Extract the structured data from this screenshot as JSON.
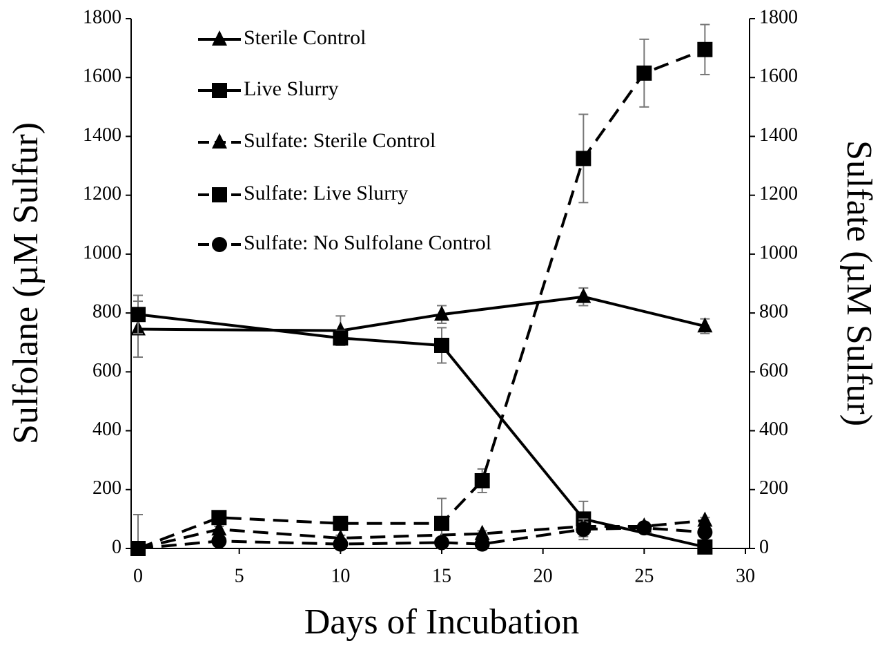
{
  "chart_data": {
    "type": "line",
    "xlabel": "Days of Incubation",
    "ylabel": "Sulfolane (µM Sulfur)",
    "y2label": "Sulfate (µM Sulfur)",
    "xlim": [
      0,
      30
    ],
    "xticks": [
      0,
      5,
      10,
      15,
      20,
      25,
      30
    ],
    "ylim": [
      0,
      1800
    ],
    "yticks": [
      0,
      200,
      400,
      600,
      800,
      1000,
      1200,
      1400,
      1600,
      1800
    ],
    "y2lim": [
      0,
      1800
    ],
    "y2ticks": [
      0,
      200,
      400,
      600,
      800,
      1000,
      1200,
      1400,
      1600,
      1800
    ],
    "legend": "upper left",
    "series": [
      {
        "name": "Sterile Control",
        "color": "#000000",
        "marker": "triangle",
        "linestyle": "solid",
        "x": [
          0,
          10,
          15,
          22,
          28
        ],
        "values": [
          745,
          740,
          795,
          855,
          755
        ],
        "errors": [
          95,
          50,
          30,
          30,
          25
        ]
      },
      {
        "name": "Live Slurry",
        "color": "#000000",
        "marker": "square",
        "linestyle": "solid",
        "x": [
          0,
          10,
          15,
          22,
          28
        ],
        "values": [
          795,
          715,
          690,
          100,
          5
        ],
        "errors": [
          65,
          25,
          60,
          60,
          5
        ]
      },
      {
        "name": "Sulfate: Sterile Control",
        "color": "#000000",
        "marker": "triangle",
        "linestyle": "dashed",
        "axis": "y2",
        "x": [
          0,
          4,
          10,
          17,
          22,
          25,
          28
        ],
        "values": [
          0,
          65,
          35,
          50,
          75,
          75,
          95
        ],
        "errors": [
          10,
          10,
          10,
          10,
          15,
          10,
          10
        ]
      },
      {
        "name": "Sulfate: Live Slurry",
        "color": "#000000",
        "marker": "square",
        "linestyle": "dashed",
        "axis": "y2",
        "x": [
          0,
          4,
          10,
          15,
          17,
          22,
          25,
          28
        ],
        "values": [
          0,
          105,
          85,
          85,
          230,
          1325,
          1615,
          1695
        ],
        "errors": [
          115,
          15,
          15,
          85,
          40,
          150,
          115,
          85
        ]
      },
      {
        "name": "Sulfate: No Sulfolane Control",
        "color": "#000000",
        "marker": "circle",
        "linestyle": "dashed",
        "axis": "y2",
        "x": [
          0,
          4,
          10,
          15,
          17,
          22,
          25,
          28
        ],
        "values": [
          0,
          25,
          15,
          20,
          15,
          65,
          70,
          55
        ],
        "errors": [
          5,
          10,
          10,
          10,
          10,
          35,
          10,
          10
        ]
      }
    ]
  }
}
